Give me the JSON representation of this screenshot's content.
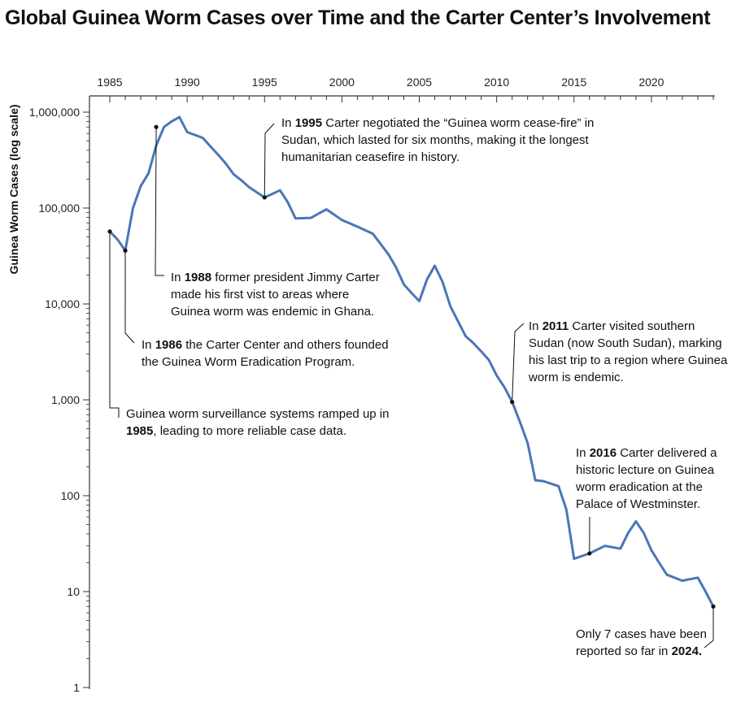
{
  "title": "Global Guinea Worm Cases over Time and the Carter Center’s Involvement",
  "chart_data": {
    "type": "line",
    "ylabel": "Guinea Worm Cases (log scale)",
    "xlabel": "",
    "yscale": "log",
    "ylim": [
      1,
      1000000
    ],
    "xlim": [
      1985,
      2024
    ],
    "x_ticks": [
      1985,
      1990,
      1995,
      2000,
      2005,
      2010,
      2015,
      2020
    ],
    "y_ticks": [
      1,
      10,
      100,
      1000,
      10000,
      100000,
      1000000
    ],
    "y_tick_labels": [
      "1",
      "10",
      "100",
      "1,000",
      "10,000",
      "100,000",
      "1,000,000"
    ],
    "x_axis_position": "top",
    "grid": false,
    "line_color": "#4a76b8",
    "series": [
      {
        "x": [
          1985,
          1985.5,
          1986,
          1986.5,
          1987,
          1987.5,
          1988,
          1988.5,
          1989,
          1989.5,
          1990,
          1991,
          1991.5,
          1992,
          1992.5,
          1993,
          1993.5,
          1994,
          1995,
          1996,
          1996.5,
          1997,
          1998,
          1999,
          2000,
          2001,
          2002,
          2003,
          2003.5,
          2004,
          2004.5,
          2005,
          2005.5,
          2006,
          2006.5,
          2007,
          2007.5,
          2008,
          2008.5,
          2009,
          2009.5,
          2010,
          2010.5,
          2011,
          2011.5,
          2012,
          2012.5,
          2013,
          2014,
          2014.5,
          2015,
          2016,
          2017,
          2018,
          2018.5,
          2019,
          2019.5,
          2020,
          2020.5,
          2021,
          2022,
          2023,
          2023.5,
          2024
        ],
        "values": [
          57000,
          47000,
          36000,
          100000,
          170000,
          230000,
          450000,
          700000,
          800000,
          890000,
          620000,
          540000,
          440000,
          360000,
          290000,
          225000,
          195000,
          165000,
          129000,
          153000,
          115000,
          78000,
          79000,
          97000,
          75000,
          64000,
          54000,
          33000,
          24000,
          16000,
          13000,
          10700,
          18000,
          25000,
          17000,
          9500,
          6600,
          4600,
          3900,
          3200,
          2600,
          1800,
          1350,
          950,
          590,
          355,
          145,
          142,
          126,
          72,
          22,
          25,
          30,
          28,
          41,
          54,
          41,
          27,
          20,
          15,
          13,
          14,
          10,
          7
        ]
      }
    ],
    "annotations": [
      {
        "year": 1985,
        "value": 57000,
        "parts": [
          [
            "Guinea worm surveillance systems ramped up in",
            ""
          ],
          [
            "",
            "1985"
          ],
          [
            "",
            ", leading to more reliable case data."
          ]
        ],
        "lines": [
          [
            [
              "Guinea worm surveillance systems ramped up in",
              false
            ]
          ],
          [
            [
              "1985",
              true
            ],
            [
              ", leading to more reliable case data.",
              false
            ]
          ]
        ]
      },
      {
        "year": 1986,
        "value": 36000,
        "lines": [
          [
            [
              "In ",
              false
            ],
            [
              "1986",
              true
            ],
            [
              " the Carter Center and others founded",
              false
            ]
          ],
          [
            [
              "the Guinea Worm Eradication Program.",
              false
            ]
          ]
        ]
      },
      {
        "year": 1988,
        "value": 700000,
        "lines": [
          [
            [
              "In ",
              false
            ],
            [
              "1988",
              true
            ],
            [
              " former president Jimmy Carter",
              false
            ]
          ],
          [
            [
              "made his first vist to areas where",
              false
            ]
          ],
          [
            [
              "Guinea worm was endemic in Ghana.",
              false
            ]
          ]
        ]
      },
      {
        "year": 1995,
        "value": 129000,
        "lines": [
          [
            [
              "In ",
              false
            ],
            [
              "1995",
              true
            ],
            [
              " Carter negotiated the “Guinea worm cease-fire” in",
              false
            ]
          ],
          [
            [
              "Sudan, which lasted for six months, making it the longest",
              false
            ]
          ],
          [
            [
              "humanitarian ceasefire in history.",
              false
            ]
          ]
        ]
      },
      {
        "year": 2011,
        "value": 950,
        "lines": [
          [
            [
              "In ",
              false
            ],
            [
              "2011",
              true
            ],
            [
              " Carter visited southern",
              false
            ]
          ],
          [
            [
              "Sudan (now South Sudan), marking",
              false
            ]
          ],
          [
            [
              "his last trip to a region where Guinea",
              false
            ]
          ],
          [
            [
              "worm is endemic.",
              false
            ]
          ]
        ]
      },
      {
        "year": 2016,
        "value": 25,
        "lines": [
          [
            [
              "In ",
              false
            ],
            [
              "2016",
              true
            ],
            [
              " Carter delivered a",
              false
            ]
          ],
          [
            [
              "historic lecture on Guinea",
              false
            ]
          ],
          [
            [
              "worm eradication at the",
              false
            ]
          ],
          [
            [
              "Palace of Westminster.",
              false
            ]
          ]
        ]
      },
      {
        "year": 2024,
        "value": 7,
        "lines": [
          [
            [
              "Only 7 cases have been",
              false
            ]
          ],
          [
            [
              "reported so far in ",
              false
            ],
            [
              "2024.",
              true
            ]
          ]
        ]
      }
    ]
  }
}
